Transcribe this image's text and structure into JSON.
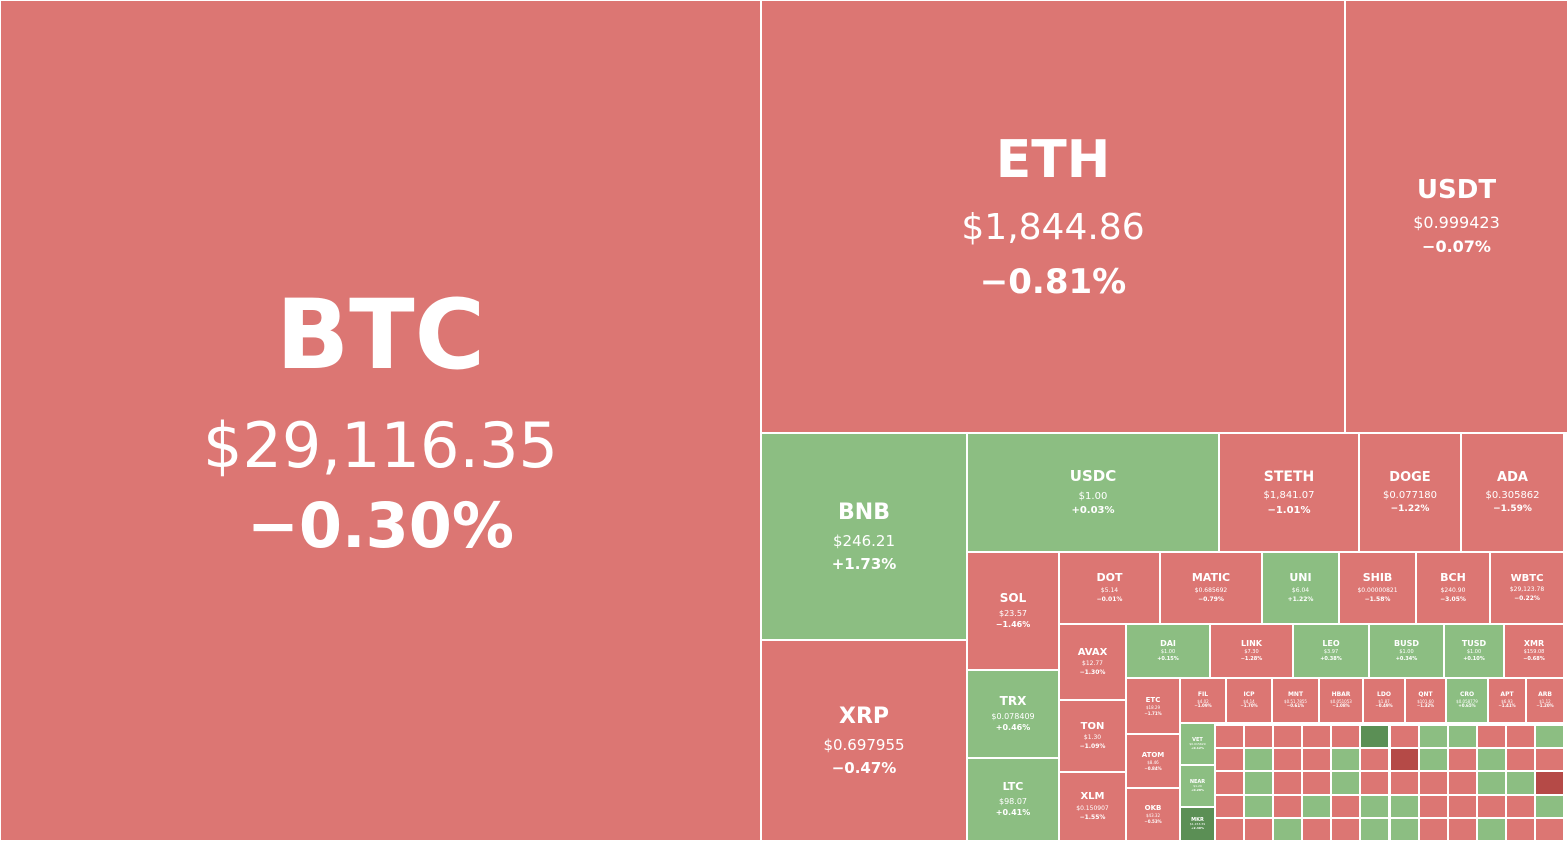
{
  "colors": {
    "down": "#dc7673",
    "up": "#8cbe82",
    "strong_down": "#b54a47",
    "strong_up": "#5b8f55"
  },
  "tiles": {
    "btc": {
      "symbol": "BTC",
      "price": "$29,116.35",
      "change": "−0.30%"
    },
    "eth": {
      "symbol": "ETH",
      "price": "$1,844.86",
      "change": "−0.81%"
    },
    "usdt": {
      "symbol": "USDT",
      "price": "$0.999423",
      "change": "−0.07%"
    },
    "bnb": {
      "symbol": "BNB",
      "price": "$246.21",
      "change": "+1.73%"
    },
    "xrp": {
      "symbol": "XRP",
      "price": "$0.697955",
      "change": "−0.47%"
    },
    "usdc": {
      "symbol": "USDC",
      "price": "$1.00",
      "change": "+0.03%"
    },
    "steth": {
      "symbol": "STETH",
      "price": "$1,841.07",
      "change": "−1.01%"
    },
    "doge": {
      "symbol": "DOGE",
      "price": "$0.077180",
      "change": "−1.22%"
    },
    "ada": {
      "symbol": "ADA",
      "price": "$0.305862",
      "change": "−1.59%"
    },
    "sol": {
      "symbol": "SOL",
      "price": "$23.57",
      "change": "−1.46%"
    },
    "trx": {
      "symbol": "TRX",
      "price": "$0.078409",
      "change": "+0.46%"
    },
    "ltc": {
      "symbol": "LTC",
      "price": "$98.07",
      "change": "+0.41%"
    },
    "dot": {
      "symbol": "DOT",
      "price": "$5.14",
      "change": "−0.01%"
    },
    "matic": {
      "symbol": "MATIC",
      "price": "$0.685692",
      "change": "−0.79%"
    },
    "uni": {
      "symbol": "UNI",
      "price": "$6.04",
      "change": "+1.22%"
    },
    "shib": {
      "symbol": "SHIB",
      "price": "$0.00000821",
      "change": "−1.58%"
    },
    "bch": {
      "symbol": "BCH",
      "price": "$240.90",
      "change": "−3.05%"
    },
    "wbtc": {
      "symbol": "WBTC",
      "price": "$29,123.78",
      "change": "−0.22%"
    },
    "avax": {
      "symbol": "AVAX",
      "price": "$12.77",
      "change": "−1.30%"
    },
    "ton": {
      "symbol": "TON",
      "price": "$1.30",
      "change": "−1.09%"
    },
    "xlm": {
      "symbol": "XLM",
      "price": "$0.150907",
      "change": "−1.55%"
    },
    "dai": {
      "symbol": "DAI",
      "price": "$1.00",
      "change": "+0.15%"
    },
    "link": {
      "symbol": "LINK",
      "price": "$7.30",
      "change": "−1.28%"
    },
    "leo": {
      "symbol": "LEO",
      "price": "$3.97",
      "change": "+0.38%"
    },
    "busd": {
      "symbol": "BUSD",
      "price": "$1.00",
      "change": "+0.34%"
    },
    "tusd": {
      "symbol": "TUSD",
      "price": "$1.00",
      "change": "+0.10%"
    },
    "xmr": {
      "symbol": "XMR",
      "price": "$159.08",
      "change": "−0.68%"
    },
    "etc": {
      "symbol": "ETC",
      "price": "$18.29",
      "change": "−1.71%"
    },
    "atom": {
      "symbol": "ATOM",
      "price": "$8.46",
      "change": "−0.84%"
    },
    "okb": {
      "symbol": "OKB",
      "price": "$43.32",
      "change": "−0.53%"
    },
    "fil": {
      "symbol": "FIL",
      "price": "$4.02",
      "change": "−1.09%"
    },
    "icp": {
      "symbol": "ICP",
      "price": "$4.14",
      "change": "−1.70%"
    },
    "mnt": {
      "symbol": "MNT",
      "price": "$0.51 7855",
      "change": "−0.61%"
    },
    "hbar": {
      "symbol": "HBAR",
      "price": "$0.051053",
      "change": "−1.08%"
    },
    "ldo": {
      "symbol": "LDO",
      "price": "$1.87",
      "change": "−0.49%"
    },
    "qnt": {
      "symbol": "QNT",
      "price": "$101.60",
      "change": "−1.32%"
    },
    "cro": {
      "symbol": "CRO",
      "price": "$0.058779",
      "change": "+0.65%"
    },
    "apt": {
      "symbol": "APT",
      "price": "$6.93",
      "change": "−1.41%"
    },
    "arb": {
      "symbol": "ARB",
      "price": "$1.12",
      "change": "−1.20%"
    },
    "vet": {
      "symbol": "VET",
      "price": "$0.015629",
      "change": "+0.12%"
    },
    "near": {
      "symbol": "NEAR",
      "price": "$1.29",
      "change": "+0.28%"
    },
    "mkr": {
      "symbol": "MKR",
      "price": "$1,153.39",
      "change": "+2.40%"
    }
  },
  "mini_tiles": [
    {
      "c": "r"
    },
    {
      "c": "r"
    },
    {
      "c": "r"
    },
    {
      "c": "r"
    },
    {
      "c": "r"
    },
    {
      "c": "dg"
    },
    {
      "c": "r"
    },
    {
      "c": "g"
    },
    {
      "c": "g"
    },
    {
      "c": "r"
    },
    {
      "c": "r"
    },
    {
      "c": "g"
    },
    {
      "c": "r"
    },
    {
      "c": "g"
    },
    {
      "c": "r"
    },
    {
      "c": "r"
    },
    {
      "c": "g"
    },
    {
      "c": "r"
    },
    {
      "c": "dr"
    },
    {
      "c": "g"
    },
    {
      "c": "r"
    },
    {
      "c": "g"
    },
    {
      "c": "r"
    },
    {
      "c": "r"
    },
    {
      "c": "r"
    },
    {
      "c": "g"
    },
    {
      "c": "r"
    },
    {
      "c": "r"
    },
    {
      "c": "g"
    },
    {
      "c": "r"
    },
    {
      "c": "r"
    },
    {
      "c": "r"
    },
    {
      "c": "r"
    },
    {
      "c": "g"
    },
    {
      "c": "g"
    },
    {
      "c": "dr"
    },
    {
      "c": "r"
    },
    {
      "c": "g"
    },
    {
      "c": "r"
    },
    {
      "c": "g"
    },
    {
      "c": "r"
    },
    {
      "c": "g"
    },
    {
      "c": "g"
    },
    {
      "c": "r"
    },
    {
      "c": "r"
    },
    {
      "c": "r"
    },
    {
      "c": "r"
    },
    {
      "c": "g"
    },
    {
      "c": "r"
    },
    {
      "c": "r"
    },
    {
      "c": "g"
    },
    {
      "c": "r"
    },
    {
      "c": "r"
    },
    {
      "c": "g"
    },
    {
      "c": "g"
    },
    {
      "c": "r"
    },
    {
      "c": "r"
    },
    {
      "c": "g"
    },
    {
      "c": "r"
    },
    {
      "c": "r"
    }
  ]
}
